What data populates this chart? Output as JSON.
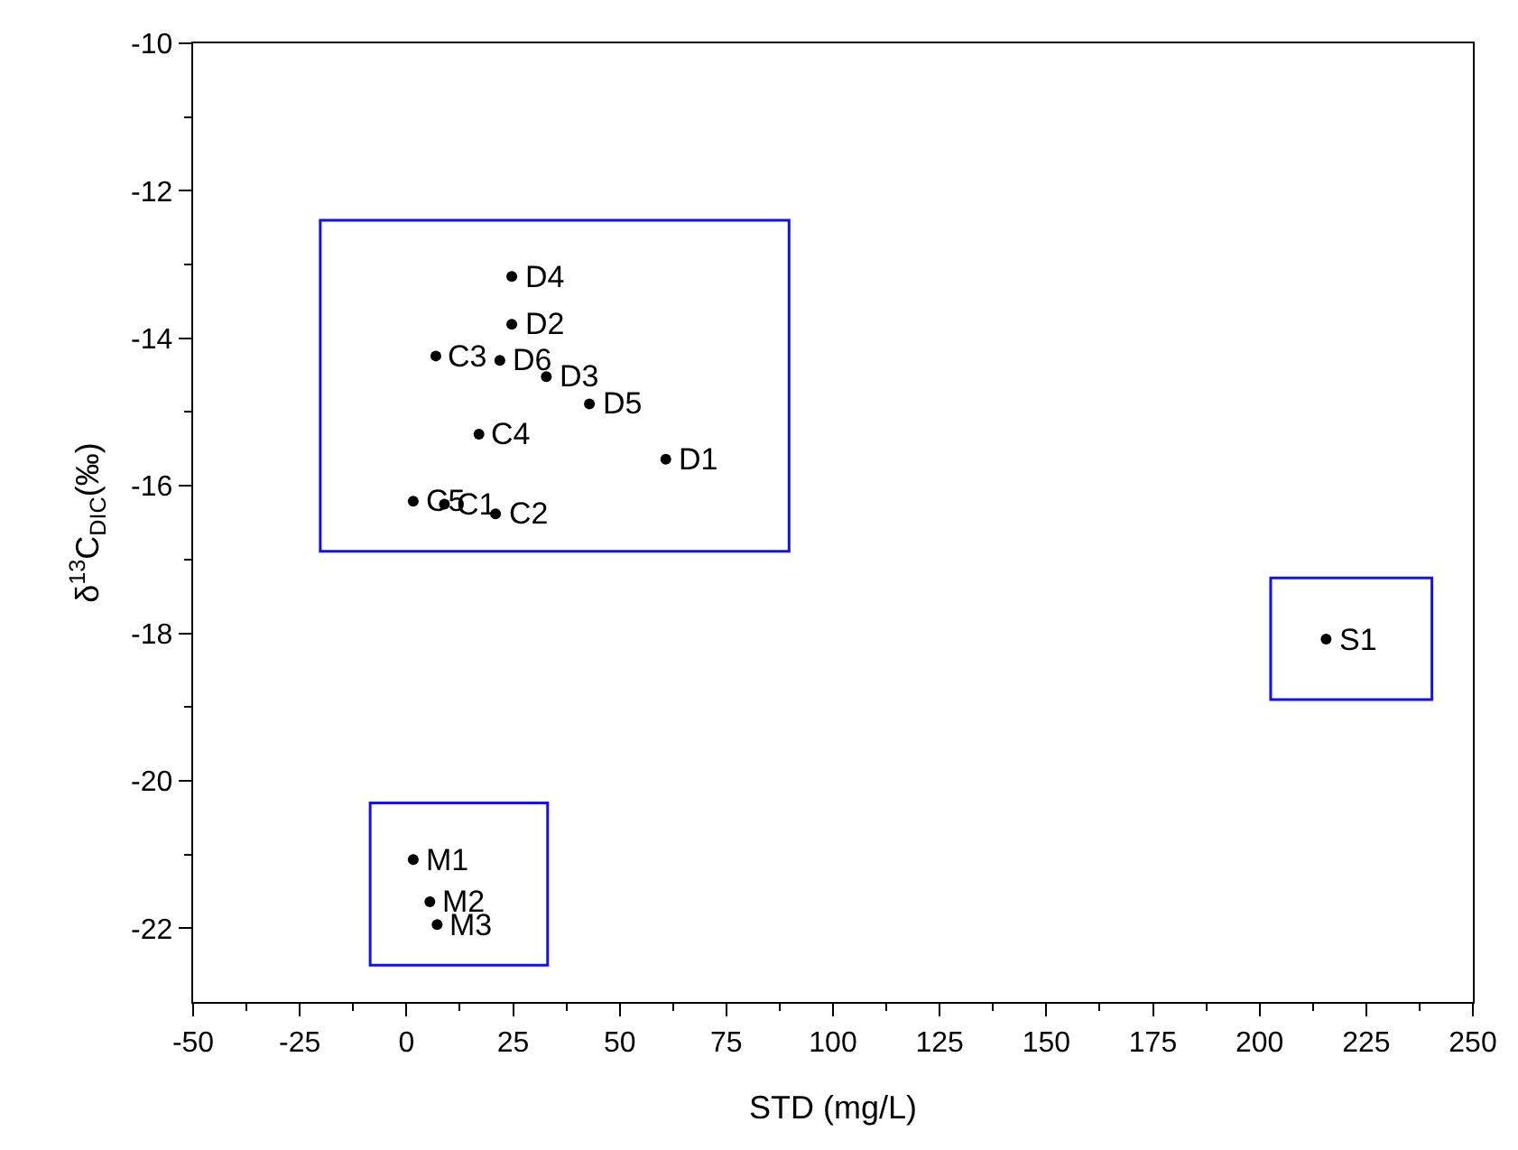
{
  "chart_data": {
    "type": "scatter",
    "xlabel": "STD (mg/L)",
    "ylabel": "δ$^{13}$C$_{DIC}$(‰)",
    "x": [
      24.7,
      24.7,
      6.9,
      21.9,
      32.8,
      42.9,
      17.0,
      60.8,
      1.6,
      8.9,
      20.9,
      1.6,
      5.5,
      7.2,
      215.6
    ],
    "series": [
      {
        "color": "#000000",
        "values": [
          -13.16,
          -13.81,
          -14.24,
          -14.3,
          -14.52,
          -14.89,
          -15.3,
          -15.64,
          -16.21,
          -16.25,
          -16.38,
          -21.07,
          -21.64,
          -21.95,
          -18.08
        ]
      }
    ],
    "annotations": [
      {
        "text": "D4",
        "x": 24.7,
        "y": -13.16
      },
      {
        "text": "D2",
        "x": 24.7,
        "y": -13.81
      },
      {
        "text": "C3",
        "x": 6.9,
        "y": -14.24
      },
      {
        "text": "D6",
        "x": 21.9,
        "y": -14.3
      },
      {
        "text": "D3",
        "x": 32.8,
        "y": -14.52
      },
      {
        "text": "D5",
        "x": 42.9,
        "y": -14.89
      },
      {
        "text": "C4",
        "x": 17.0,
        "y": -15.3
      },
      {
        "text": "D1",
        "x": 60.8,
        "y": -15.64
      },
      {
        "text": "C5",
        "x": 1.6,
        "y": -16.21
      },
      {
        "text": "C1",
        "x": 8.9,
        "y": -16.25
      },
      {
        "text": "C2",
        "x": 20.9,
        "y": -16.38
      },
      {
        "text": "M1",
        "x": 1.6,
        "y": -21.07
      },
      {
        "text": "M2",
        "x": 5.5,
        "y": -21.64
      },
      {
        "text": "M3",
        "x": 7.2,
        "y": -21.95
      },
      {
        "text": "S1",
        "x": 215.6,
        "y": -18.08
      }
    ],
    "xlim": [
      -50,
      250
    ],
    "xticks": [
      -50,
      -25,
      0,
      25,
      50,
      75,
      100,
      125,
      150,
      175,
      200,
      225,
      250
    ],
    "ylim": [
      -23,
      -10
    ],
    "yticks": [
      -22,
      -20,
      -18,
      -16,
      -14,
      -12,
      -10
    ],
    "marker": "circle"
  }
}
